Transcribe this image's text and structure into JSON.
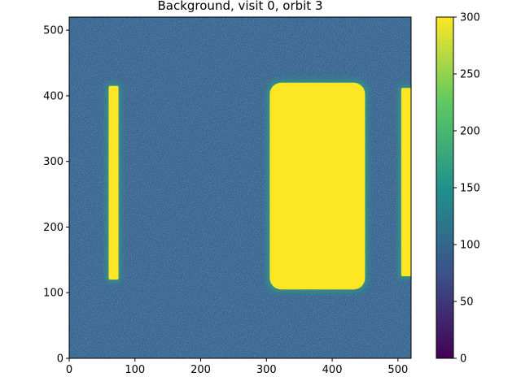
{
  "chart_data": {
    "type": "heatmap",
    "title": "Background, visit 0, orbit 3",
    "xlabel": "",
    "ylabel": "",
    "colormap": "viridis",
    "colormap_stops": [
      "#440154",
      "#3b528b",
      "#21918c",
      "#5ec962",
      "#fde725"
    ],
    "xlim": [
      0,
      520
    ],
    "ylim": [
      0,
      520
    ],
    "x_ticks": [
      0,
      100,
      200,
      300,
      400,
      500
    ],
    "y_ticks": [
      0,
      100,
      200,
      300,
      400,
      500
    ],
    "colorbar": {
      "range": [
        0,
        300
      ],
      "ticks": [
        0,
        50,
        100,
        150,
        200,
        250,
        300
      ]
    },
    "background_level": 90,
    "features": [
      {
        "name": "left-strip",
        "x": [
          60,
          75
        ],
        "y": [
          120,
          415
        ],
        "value": 300
      },
      {
        "name": "center-block",
        "x": [
          305,
          450
        ],
        "y": [
          105,
          420
        ],
        "value": 300
      },
      {
        "name": "right-strip",
        "x": [
          505,
          520
        ],
        "y": [
          125,
          412
        ],
        "value": 300
      }
    ]
  }
}
